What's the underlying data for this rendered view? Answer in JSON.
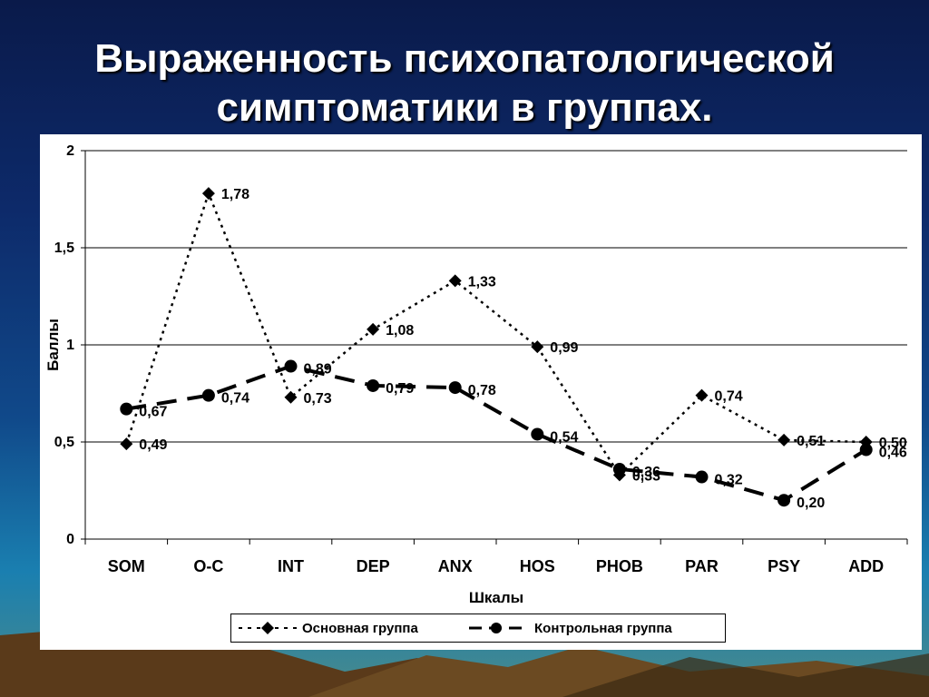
{
  "slide": {
    "title_line1": "Выраженность психопатологической",
    "title_line2": "симптоматики в группах."
  },
  "chart_data": {
    "type": "line",
    "title": "Выраженность психопатологической симптоматики в группах.",
    "xlabel": "Шкалы",
    "ylabel": "Баллы",
    "ylim": [
      0,
      2
    ],
    "yticks": [
      "0",
      "0,5",
      "1",
      "1,5",
      "2"
    ],
    "grid": "horizontal",
    "legend_position": "bottom",
    "categories": [
      "SOM",
      "O-C",
      "INT",
      "DEP",
      "ANX",
      "HOS",
      "PHOB",
      "PAR",
      "PSY",
      "ADD"
    ],
    "series": [
      {
        "name": "Основная группа",
        "marker": "diamond",
        "line_style": "dotted",
        "values": [
          0.49,
          1.78,
          0.73,
          1.08,
          1.33,
          0.99,
          0.33,
          0.74,
          0.51,
          0.5
        ],
        "labels": [
          "0,49",
          "1,78",
          "0,73",
          "1,08",
          "1,33",
          "0,99",
          "0,33",
          "0,74",
          "0,51",
          "0,50"
        ]
      },
      {
        "name": "Контрольная группа",
        "marker": "circle",
        "line_style": "dashed",
        "values": [
          0.67,
          0.74,
          0.89,
          0.79,
          0.78,
          0.54,
          0.36,
          0.32,
          0.2,
          0.46
        ],
        "labels": [
          "0,67",
          "0,74",
          "0,89",
          "0,79",
          "0,78",
          "0,54",
          "0,36",
          "0,32",
          "0,20",
          "0,46"
        ]
      }
    ]
  }
}
